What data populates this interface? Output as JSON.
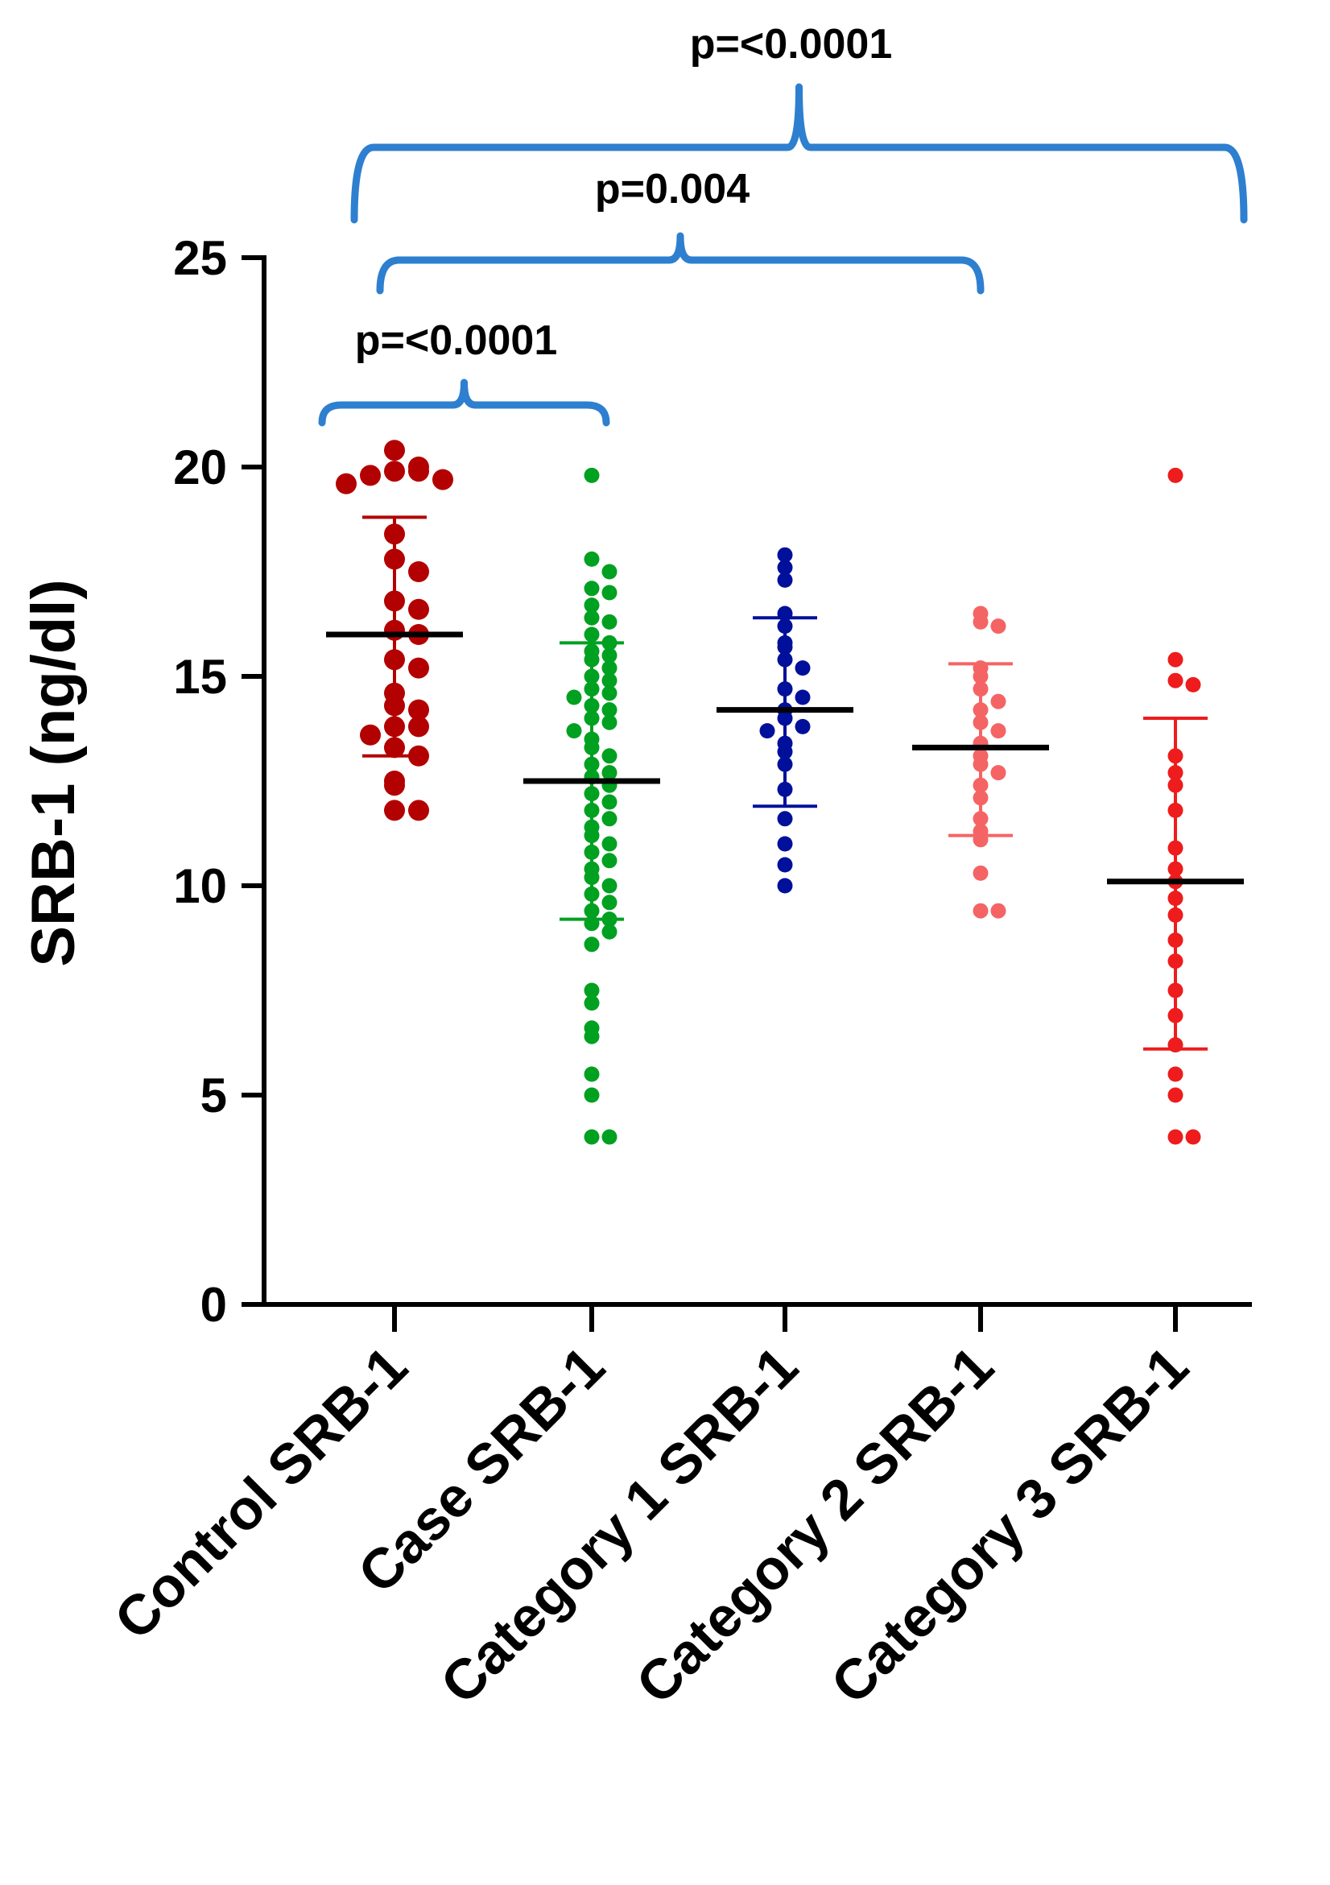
{
  "chart_data": {
    "type": "scatter",
    "ylabel": "SRB-1 (ng/dl)",
    "xlabel": "",
    "ylim": [
      0,
      25
    ],
    "yticks": [
      0,
      5,
      10,
      15,
      20,
      25
    ],
    "categories": [
      "Control SRB-1",
      "Case SRB-1",
      "Category 1 SRB-1",
      "Category 2 SRB-1",
      "Category 3 SRB-1"
    ],
    "series": [
      {
        "name": "Control SRB-1",
        "color": "#b30000",
        "mean": 16.0,
        "sd_low": 13.1,
        "sd_high": 18.8,
        "points": [
          20.4,
          20.0,
          19.9,
          19.9,
          19.8,
          19.7,
          19.6,
          18.4,
          17.8,
          17.5,
          16.8,
          16.6,
          16.1,
          16.0,
          15.4,
          15.2,
          14.6,
          14.3,
          14.2,
          13.8,
          13.8,
          13.6,
          13.3,
          13.1,
          12.5,
          12.4,
          11.8,
          11.8
        ]
      },
      {
        "name": "Case SRB-1",
        "color": "#00a020",
        "mean": 12.5,
        "sd_low": 9.2,
        "sd_high": 15.8,
        "points": [
          19.8,
          17.8,
          17.5,
          17.1,
          17.0,
          16.7,
          16.4,
          16.3,
          16.0,
          15.8,
          15.6,
          15.5,
          15.4,
          15.2,
          15.0,
          14.9,
          14.7,
          14.6,
          14.5,
          14.3,
          14.2,
          14.0,
          13.9,
          13.7,
          13.5,
          13.3,
          13.1,
          12.9,
          12.7,
          12.6,
          12.4,
          12.2,
          12.0,
          11.8,
          11.6,
          11.4,
          11.2,
          11.0,
          10.8,
          10.6,
          10.4,
          10.2,
          10.0,
          9.8,
          9.6,
          9.4,
          9.2,
          9.1,
          8.9,
          8.6,
          7.5,
          7.2,
          6.6,
          6.4,
          5.5,
          5.0,
          4.0,
          4.0
        ]
      },
      {
        "name": "Category 1 SRB-1",
        "color": "#00109a",
        "mean": 14.2,
        "sd_low": 11.9,
        "sd_high": 16.4,
        "points": [
          17.9,
          17.6,
          17.3,
          16.5,
          16.2,
          15.8,
          15.7,
          15.4,
          15.2,
          14.7,
          14.5,
          14.2,
          14.0,
          13.8,
          13.7,
          13.4,
          13.2,
          12.9,
          12.3,
          11.6,
          11.0,
          10.5,
          10.0
        ]
      },
      {
        "name": "Category 2 SRB-1",
        "color": "#f46464",
        "mean": 13.3,
        "sd_low": 11.2,
        "sd_high": 15.3,
        "points": [
          16.5,
          16.3,
          16.2,
          15.2,
          15.0,
          14.7,
          14.4,
          14.2,
          13.9,
          13.7,
          13.4,
          13.1,
          12.9,
          12.7,
          12.4,
          12.1,
          11.6,
          11.3,
          11.1,
          10.3,
          9.4,
          9.4
        ]
      },
      {
        "name": "Category 3 SRB-1",
        "color": "#ee1c1c",
        "mean": 10.1,
        "sd_low": 6.1,
        "sd_high": 14.0,
        "points": [
          19.8,
          15.4,
          14.9,
          14.8,
          13.1,
          12.7,
          12.4,
          11.8,
          10.9,
          10.4,
          10.1,
          9.7,
          9.3,
          8.7,
          8.2,
          7.5,
          6.9,
          6.2,
          5.5,
          5.0,
          4.0,
          4.0
        ]
      }
    ],
    "annotations": [
      {
        "text": "p=<0.0001",
        "from": 0,
        "to": 1,
        "level": 1
      },
      {
        "text": "p=0.004",
        "from": 0,
        "to": 3,
        "level": 2
      },
      {
        "text": "p=<0.0001",
        "from": 0,
        "to": 4,
        "level": 3
      }
    ],
    "bracket_color": "#2e7fcf"
  }
}
